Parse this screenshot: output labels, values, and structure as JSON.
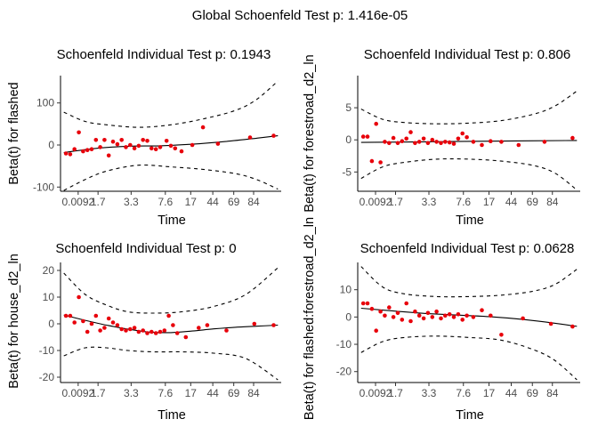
{
  "page_title": "Global Schoenfeld Test p: 1.416e-05",
  "chart_data": [
    {
      "type": "scatter",
      "title": "Schoenfeld Individual Test p: 0.1943",
      "xlabel": "Time",
      "ylabel": "Beta(t) for flashed",
      "x_ticks": [
        "0.0092",
        "1.7",
        "3.3",
        "7.6",
        "17",
        "44",
        "69",
        "84"
      ],
      "y_ticks": [
        -100,
        0,
        100
      ],
      "ylim": [
        -110,
        165
      ],
      "points": [
        {
          "x": 0.01,
          "y": -20
        },
        {
          "x": 0.03,
          "y": -22
        },
        {
          "x": 0.05,
          "y": -10
        },
        {
          "x": 0.07,
          "y": 30
        },
        {
          "x": 0.09,
          "y": -15
        },
        {
          "x": 0.11,
          "y": -12
        },
        {
          "x": 0.13,
          "y": -10
        },
        {
          "x": 0.15,
          "y": 12
        },
        {
          "x": 0.17,
          "y": -5
        },
        {
          "x": 0.19,
          "y": 12
        },
        {
          "x": 0.21,
          "y": -25
        },
        {
          "x": 0.23,
          "y": 8
        },
        {
          "x": 0.25,
          "y": 2
        },
        {
          "x": 0.27,
          "y": 12
        },
        {
          "x": 0.29,
          "y": -5
        },
        {
          "x": 0.31,
          "y": 0
        },
        {
          "x": 0.33,
          "y": -8
        },
        {
          "x": 0.35,
          "y": -2
        },
        {
          "x": 0.37,
          "y": 12
        },
        {
          "x": 0.39,
          "y": 10
        },
        {
          "x": 0.41,
          "y": -8
        },
        {
          "x": 0.43,
          "y": -10
        },
        {
          "x": 0.45,
          "y": -5
        },
        {
          "x": 0.48,
          "y": 10
        },
        {
          "x": 0.5,
          "y": -2
        },
        {
          "x": 0.52,
          "y": -8
        },
        {
          "x": 0.55,
          "y": -15
        },
        {
          "x": 0.6,
          "y": 0
        },
        {
          "x": 0.65,
          "y": 42
        },
        {
          "x": 0.72,
          "y": 3
        },
        {
          "x": 0.87,
          "y": 18
        },
        {
          "x": 0.98,
          "y": 22
        }
      ],
      "fit": [
        {
          "x": 0.0,
          "y": -18
        },
        {
          "x": 0.15,
          "y": -8
        },
        {
          "x": 0.3,
          "y": -3
        },
        {
          "x": 0.45,
          "y": -2
        },
        {
          "x": 0.6,
          "y": 2
        },
        {
          "x": 0.75,
          "y": 8
        },
        {
          "x": 0.9,
          "y": 16
        },
        {
          "x": 1.0,
          "y": 22
        }
      ],
      "ci_upper": [
        {
          "x": 0.0,
          "y": 78
        },
        {
          "x": 0.1,
          "y": 56
        },
        {
          "x": 0.2,
          "y": 48
        },
        {
          "x": 0.35,
          "y": 42
        },
        {
          "x": 0.5,
          "y": 48
        },
        {
          "x": 0.65,
          "y": 62
        },
        {
          "x": 0.8,
          "y": 82
        },
        {
          "x": 0.9,
          "y": 108
        },
        {
          "x": 1.0,
          "y": 152
        }
      ],
      "ci_lower": [
        {
          "x": 0.0,
          "y": -108
        },
        {
          "x": 0.1,
          "y": -82
        },
        {
          "x": 0.2,
          "y": -62
        },
        {
          "x": 0.35,
          "y": -48
        },
        {
          "x": 0.5,
          "y": -52
        },
        {
          "x": 0.65,
          "y": -58
        },
        {
          "x": 0.8,
          "y": -68
        },
        {
          "x": 0.9,
          "y": -82
        },
        {
          "x": 1.0,
          "y": -105
        }
      ]
    },
    {
      "type": "scatter",
      "title": "Schoenfeld Individual Test p: 0.806",
      "xlabel": "Time",
      "ylabel": "Beta(t) for forestroad_d2_ln",
      "x_ticks": [
        "0.0092",
        "1.7",
        "3.3",
        "7.6",
        "17",
        "44",
        "69",
        "84"
      ],
      "y_ticks": [
        -5,
        0,
        5
      ],
      "ylim": [
        -8,
        10
      ],
      "points": [
        {
          "x": 0.01,
          "y": 0.5
        },
        {
          "x": 0.03,
          "y": 0.5
        },
        {
          "x": 0.05,
          "y": -3.3
        },
        {
          "x": 0.07,
          "y": 2.5
        },
        {
          "x": 0.09,
          "y": -3.5
        },
        {
          "x": 0.11,
          "y": -0.3
        },
        {
          "x": 0.13,
          "y": -0.5
        },
        {
          "x": 0.15,
          "y": 0.3
        },
        {
          "x": 0.17,
          "y": -0.5
        },
        {
          "x": 0.19,
          "y": -0.2
        },
        {
          "x": 0.21,
          "y": 0.2
        },
        {
          "x": 0.23,
          "y": 1.2
        },
        {
          "x": 0.25,
          "y": -0.5
        },
        {
          "x": 0.27,
          "y": -0.3
        },
        {
          "x": 0.29,
          "y": 0.2
        },
        {
          "x": 0.31,
          "y": -0.5
        },
        {
          "x": 0.33,
          "y": 0
        },
        {
          "x": 0.35,
          "y": -0.3
        },
        {
          "x": 0.37,
          "y": -0.5
        },
        {
          "x": 0.39,
          "y": -0.3
        },
        {
          "x": 0.41,
          "y": -0.4
        },
        {
          "x": 0.43,
          "y": -0.6
        },
        {
          "x": 0.45,
          "y": 0.2
        },
        {
          "x": 0.47,
          "y": 1.0
        },
        {
          "x": 0.49,
          "y": 0.4
        },
        {
          "x": 0.52,
          "y": -0.3
        },
        {
          "x": 0.56,
          "y": -0.8
        },
        {
          "x": 0.6,
          "y": -0.2
        },
        {
          "x": 0.65,
          "y": -0.3
        },
        {
          "x": 0.73,
          "y": -0.8
        },
        {
          "x": 0.85,
          "y": -0.3
        },
        {
          "x": 0.98,
          "y": 0.3
        }
      ],
      "fit": [
        {
          "x": 0.0,
          "y": -0.4
        },
        {
          "x": 0.3,
          "y": -0.3
        },
        {
          "x": 0.6,
          "y": -0.2
        },
        {
          "x": 1.0,
          "y": -0.1
        }
      ],
      "ci_upper": [
        {
          "x": 0.0,
          "y": 4.8
        },
        {
          "x": 0.1,
          "y": 3.2
        },
        {
          "x": 0.2,
          "y": 2.7
        },
        {
          "x": 0.35,
          "y": 2.5
        },
        {
          "x": 0.5,
          "y": 2.6
        },
        {
          "x": 0.65,
          "y": 3.0
        },
        {
          "x": 0.8,
          "y": 4.0
        },
        {
          "x": 0.9,
          "y": 5.3
        },
        {
          "x": 1.0,
          "y": 7.6
        }
      ],
      "ci_lower": [
        {
          "x": 0.0,
          "y": -6.0
        },
        {
          "x": 0.1,
          "y": -4.2
        },
        {
          "x": 0.2,
          "y": -3.5
        },
        {
          "x": 0.35,
          "y": -3.0
        },
        {
          "x": 0.5,
          "y": -3.0
        },
        {
          "x": 0.65,
          "y": -3.3
        },
        {
          "x": 0.8,
          "y": -4.0
        },
        {
          "x": 0.9,
          "y": -5.2
        },
        {
          "x": 1.0,
          "y": -7.8
        }
      ]
    },
    {
      "type": "scatter",
      "title": "Schoenfeld Individual Test p: 0",
      "xlabel": "Time",
      "ylabel": "Beta(t) for house_d2_ln",
      "x_ticks": [
        "0.0092",
        "1.7",
        "3.3",
        "7.6",
        "17",
        "44",
        "69",
        "84"
      ],
      "y_ticks": [
        -20,
        -10,
        0,
        10,
        20
      ],
      "ylim": [
        -22,
        23
      ],
      "points": [
        {
          "x": 0.01,
          "y": 3
        },
        {
          "x": 0.03,
          "y": 3
        },
        {
          "x": 0.05,
          "y": 0.5
        },
        {
          "x": 0.07,
          "y": 10
        },
        {
          "x": 0.09,
          "y": 1
        },
        {
          "x": 0.11,
          "y": -3
        },
        {
          "x": 0.13,
          "y": 0
        },
        {
          "x": 0.15,
          "y": 3
        },
        {
          "x": 0.17,
          "y": -2.5
        },
        {
          "x": 0.19,
          "y": -1.5
        },
        {
          "x": 0.21,
          "y": 2
        },
        {
          "x": 0.23,
          "y": 0.5
        },
        {
          "x": 0.25,
          "y": -0.5
        },
        {
          "x": 0.27,
          "y": -2
        },
        {
          "x": 0.29,
          "y": -2.5
        },
        {
          "x": 0.31,
          "y": -2
        },
        {
          "x": 0.33,
          "y": -1.5
        },
        {
          "x": 0.35,
          "y": -3
        },
        {
          "x": 0.37,
          "y": -2.5
        },
        {
          "x": 0.39,
          "y": -3.5
        },
        {
          "x": 0.41,
          "y": -3
        },
        {
          "x": 0.43,
          "y": -3.5
        },
        {
          "x": 0.45,
          "y": -3
        },
        {
          "x": 0.47,
          "y": -2.5
        },
        {
          "x": 0.49,
          "y": 3
        },
        {
          "x": 0.51,
          "y": -0.5
        },
        {
          "x": 0.53,
          "y": -3.5
        },
        {
          "x": 0.57,
          "y": -5
        },
        {
          "x": 0.63,
          "y": -1.5
        },
        {
          "x": 0.67,
          "y": -0.5
        },
        {
          "x": 0.76,
          "y": -2.5
        },
        {
          "x": 0.89,
          "y": 0
        },
        {
          "x": 0.98,
          "y": -0.5
        }
      ],
      "fit": [
        {
          "x": 0.0,
          "y": 3.3
        },
        {
          "x": 0.1,
          "y": 1.3
        },
        {
          "x": 0.2,
          "y": -0.5
        },
        {
          "x": 0.3,
          "y": -2
        },
        {
          "x": 0.4,
          "y": -3.1
        },
        {
          "x": 0.5,
          "y": -3.3
        },
        {
          "x": 0.6,
          "y": -2.7
        },
        {
          "x": 0.7,
          "y": -1.9
        },
        {
          "x": 0.8,
          "y": -1.3
        },
        {
          "x": 0.9,
          "y": -0.9
        },
        {
          "x": 1.0,
          "y": -0.5
        }
      ],
      "ci_upper": [
        {
          "x": 0.0,
          "y": 19
        },
        {
          "x": 0.1,
          "y": 11
        },
        {
          "x": 0.2,
          "y": 7
        },
        {
          "x": 0.3,
          "y": 4.5
        },
        {
          "x": 0.42,
          "y": 4
        },
        {
          "x": 0.55,
          "y": 4.5
        },
        {
          "x": 0.7,
          "y": 6.5
        },
        {
          "x": 0.85,
          "y": 11
        },
        {
          "x": 1.0,
          "y": 21
        }
      ],
      "ci_lower": [
        {
          "x": 0.0,
          "y": -12
        },
        {
          "x": 0.1,
          "y": -9
        },
        {
          "x": 0.2,
          "y": -9
        },
        {
          "x": 0.3,
          "y": -10
        },
        {
          "x": 0.42,
          "y": -10.5
        },
        {
          "x": 0.55,
          "y": -10.5
        },
        {
          "x": 0.7,
          "y": -11
        },
        {
          "x": 0.85,
          "y": -13
        },
        {
          "x": 1.0,
          "y": -21
        }
      ]
    },
    {
      "type": "scatter",
      "title": "Schoenfeld Individual Test p: 0.0628",
      "xlabel": "Time",
      "ylabel": "Beta(t) for flashed:forestroad_d2_ln",
      "x_ticks": [
        "0.0092",
        "1.7",
        "3.3",
        "7.6",
        "17",
        "44",
        "69",
        "84"
      ],
      "y_ticks": [
        -20,
        -10,
        0,
        10
      ],
      "ylim": [
        -24,
        20
      ],
      "points": [
        {
          "x": 0.01,
          "y": 5
        },
        {
          "x": 0.03,
          "y": 5
        },
        {
          "x": 0.05,
          "y": 3
        },
        {
          "x": 0.07,
          "y": -5
        },
        {
          "x": 0.09,
          "y": 2
        },
        {
          "x": 0.11,
          "y": 0.5
        },
        {
          "x": 0.13,
          "y": 3.5
        },
        {
          "x": 0.15,
          "y": 0
        },
        {
          "x": 0.17,
          "y": 1.5
        },
        {
          "x": 0.19,
          "y": -1
        },
        {
          "x": 0.21,
          "y": 5
        },
        {
          "x": 0.23,
          "y": -1.5
        },
        {
          "x": 0.25,
          "y": 2
        },
        {
          "x": 0.27,
          "y": 0.5
        },
        {
          "x": 0.29,
          "y": -0.5
        },
        {
          "x": 0.31,
          "y": 1.5
        },
        {
          "x": 0.33,
          "y": 0
        },
        {
          "x": 0.35,
          "y": 2
        },
        {
          "x": 0.37,
          "y": -0.5
        },
        {
          "x": 0.39,
          "y": 0.5
        },
        {
          "x": 0.41,
          "y": 1
        },
        {
          "x": 0.43,
          "y": 0
        },
        {
          "x": 0.45,
          "y": 1
        },
        {
          "x": 0.47,
          "y": -1
        },
        {
          "x": 0.49,
          "y": 0.5
        },
        {
          "x": 0.52,
          "y": 0
        },
        {
          "x": 0.56,
          "y": 2.5
        },
        {
          "x": 0.6,
          "y": 0.5
        },
        {
          "x": 0.65,
          "y": -6.5
        },
        {
          "x": 0.75,
          "y": -0.5
        },
        {
          "x": 0.88,
          "y": -2.5
        },
        {
          "x": 0.98,
          "y": -3.5
        }
      ],
      "fit": [
        {
          "x": 0.0,
          "y": 3.2
        },
        {
          "x": 0.15,
          "y": 2.2
        },
        {
          "x": 0.3,
          "y": 1.3
        },
        {
          "x": 0.45,
          "y": 0.7
        },
        {
          "x": 0.6,
          "y": 0.1
        },
        {
          "x": 0.75,
          "y": -0.9
        },
        {
          "x": 0.9,
          "y": -2.3
        },
        {
          "x": 1.0,
          "y": -3.4
        }
      ],
      "ci_upper": [
        {
          "x": 0.0,
          "y": 18.5
        },
        {
          "x": 0.1,
          "y": 11
        },
        {
          "x": 0.2,
          "y": 8.5
        },
        {
          "x": 0.35,
          "y": 7.5
        },
        {
          "x": 0.5,
          "y": 7.5
        },
        {
          "x": 0.65,
          "y": 8
        },
        {
          "x": 0.8,
          "y": 9.5
        },
        {
          "x": 0.9,
          "y": 12
        },
        {
          "x": 1.0,
          "y": 17.5
        }
      ],
      "ci_lower": [
        {
          "x": 0.0,
          "y": -13
        },
        {
          "x": 0.1,
          "y": -9
        },
        {
          "x": 0.2,
          "y": -7.5
        },
        {
          "x": 0.35,
          "y": -7
        },
        {
          "x": 0.5,
          "y": -7.5
        },
        {
          "x": 0.65,
          "y": -8.5
        },
        {
          "x": 0.8,
          "y": -12
        },
        {
          "x": 0.9,
          "y": -16
        },
        {
          "x": 1.0,
          "y": -23
        }
      ]
    }
  ]
}
